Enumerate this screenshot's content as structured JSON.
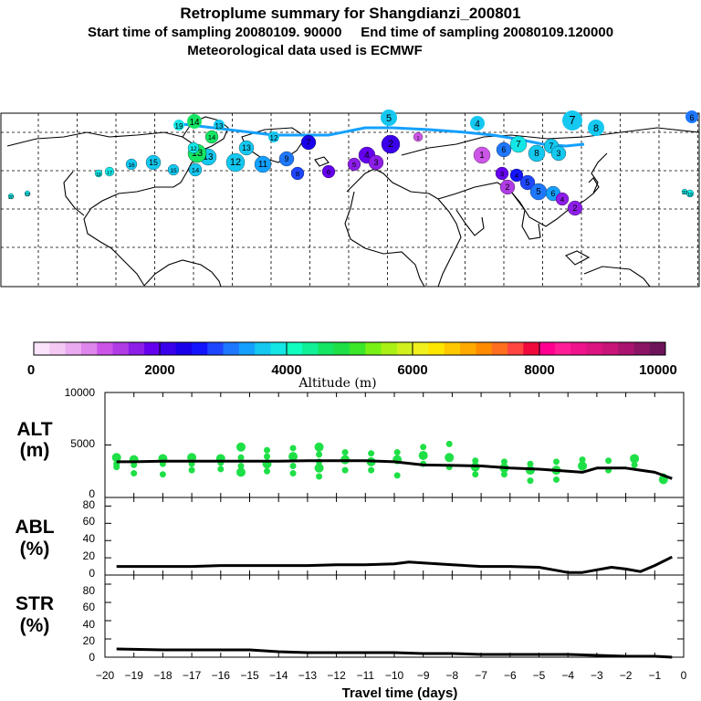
{
  "header": {
    "title": "Retroplume summary for Shangdianzi_200801",
    "line2": "Start time of sampling 20080109. 90000     End time of sampling 20080109.120000",
    "line3": "Meteorological data used is ECMWF"
  },
  "colorbar": {
    "ticks": [
      "0",
      "2000",
      "4000",
      "6000",
      "8000",
      "10000"
    ],
    "label": "Altitude (m)",
    "colors": [
      "#fbe3fb",
      "#f3c8f3",
      "#eaaaf0",
      "#df86ec",
      "#cc55e8",
      "#b03ce6",
      "#8c1ee8",
      "#6400ee",
      "#3a00ea",
      "#1a00e8",
      "#1414ff",
      "#1e46ff",
      "#1e78ff",
      "#14a0ff",
      "#14c8f0",
      "#14e6e6",
      "#10ffc0",
      "#10f096",
      "#14e664",
      "#1ee046",
      "#3ce628",
      "#78f014",
      "#aaf014",
      "#d2f01e",
      "#f0f01e",
      "#ffe600",
      "#ffc800",
      "#ffaa00",
      "#ff8c00",
      "#ff6e1e",
      "#ff4640",
      "#f00a3c",
      "#ff0090",
      "#ff1e96",
      "#f0148c",
      "#dc1482",
      "#c81478",
      "#aa1470",
      "#8c1464",
      "#6e145a"
    ]
  },
  "map_labels": {
    "upper_track": [
      "19",
      "14",
      "13",
      "12",
      "5",
      "4",
      "7",
      "8",
      "6"
    ],
    "clusters": [
      "20",
      "19",
      "18",
      "17",
      "16",
      "15",
      "14",
      "13",
      "12",
      "11",
      "10",
      "9",
      "8",
      "7",
      "6",
      "5",
      "4",
      "3",
      "2",
      "1"
    ]
  },
  "panels": {
    "alt": {
      "label_line1": "ALT",
      "label_line2": "(m)",
      "yticks": [
        "10000",
        "5000",
        "0"
      ]
    },
    "abl": {
      "label_line1": "ABL",
      "label_line2": "(%)",
      "yticks": [
        "80",
        "60",
        "40",
        "20",
        "0"
      ]
    },
    "str": {
      "label_line1": "STR",
      "label_line2": "(%)",
      "yticks": [
        "80",
        "60",
        "40",
        "20",
        "0"
      ]
    },
    "xticks": [
      "−20",
      "−19",
      "−18",
      "−17",
      "−16",
      "−15",
      "−14",
      "−13",
      "−12",
      "−11",
      "−10",
      "−9",
      "−8",
      "−7",
      "−6",
      "−5",
      "−4",
      "−3",
      "−2",
      "−1",
      "0"
    ],
    "xlabel": "Travel time (days)"
  },
  "chart_data": [
    {
      "type": "line",
      "title": "ALT",
      "ylabel": "(m)",
      "xlabel": "Travel time (days)",
      "xlim": [
        -20,
        0
      ],
      "ylim": [
        0,
        10000
      ],
      "series": [
        {
          "name": "mean altitude",
          "x": [
            -19.6,
            -19,
            -18,
            -17,
            -16,
            -15,
            -14,
            -13,
            -12,
            -11,
            -10,
            -9,
            -8,
            -7,
            -6,
            -5,
            -4,
            -3.5,
            -3,
            -2,
            -1.5,
            -1,
            -0.4
          ],
          "values": [
            3400,
            3400,
            3450,
            3450,
            3450,
            3450,
            3450,
            3500,
            3500,
            3500,
            3400,
            3100,
            3050,
            3000,
            2800,
            2700,
            2500,
            2400,
            2800,
            2800,
            2600,
            2400,
            1800
          ]
        },
        {
          "name": "cluster altitudes",
          "x": [
            -19.6,
            -19.6,
            -19.6,
            -19,
            -19,
            -19,
            -18,
            -18,
            -18,
            -17,
            -17,
            -17,
            -16,
            -16,
            -16,
            -15.3,
            -15.3,
            -15.3,
            -15.3,
            -14.4,
            -14.4,
            -14.4,
            -14.4,
            -13.5,
            -13.5,
            -13.5,
            -13.5,
            -12.6,
            -12.6,
            -12.6,
            -12.6,
            -12.6,
            -11.7,
            -11.7,
            -11.7,
            -10.8,
            -10.8,
            -10.8,
            -9.9,
            -9.9,
            -9.9,
            -9,
            -9,
            -9,
            -8.1,
            -8.1,
            -8.1,
            -7.2,
            -7.2,
            -7.2,
            -6.2,
            -6.2,
            -6.2,
            -5.3,
            -5.3,
            -5.3,
            -4.4,
            -4.4,
            -4.4,
            -3.5,
            -3.5,
            -2.6,
            -2.6,
            -1.7,
            -1.7,
            -0.7,
            -0.7
          ],
          "values": [
            3800,
            3200,
            2900,
            3600,
            3100,
            2300,
            3700,
            3200,
            2200,
            3800,
            3200,
            2600,
            3700,
            3300,
            2700,
            4800,
            3800,
            3000,
            2400,
            4500,
            3900,
            3200,
            2500,
            4700,
            3900,
            3000,
            2300,
            4800,
            4100,
            3400,
            2800,
            2000,
            4300,
            3600,
            2600,
            4200,
            3400,
            2600,
            4300,
            3600,
            2100,
            4800,
            4000,
            3200,
            5100,
            3800,
            2900,
            3500,
            2900,
            2200,
            3400,
            2800,
            2200,
            3200,
            2600,
            1600,
            3400,
            2600,
            1700,
            3600,
            3000,
            3500,
            2600,
            3700,
            3100,
            2000,
            1700
          ]
        }
      ]
    },
    {
      "type": "line",
      "title": "ABL",
      "ylabel": "(%)",
      "xlim": [
        -20,
        0
      ],
      "ylim": [
        0,
        90
      ],
      "series": [
        {
          "name": "ABL fraction",
          "x": [
            -19.6,
            -18,
            -17,
            -16,
            -15,
            -14,
            -13,
            -12,
            -11,
            -10,
            -9.5,
            -9,
            -8,
            -7,
            -6,
            -5,
            -4.5,
            -4,
            -3.5,
            -3,
            -2.5,
            -2,
            -1.5,
            -1,
            -0.4
          ],
          "values": [
            10,
            10,
            10,
            11,
            11,
            11,
            11,
            12,
            12,
            13,
            15,
            14,
            12,
            10,
            10,
            9,
            6,
            3,
            3,
            6,
            9,
            7,
            4,
            11,
            21
          ]
        }
      ]
    },
    {
      "type": "line",
      "title": "STR",
      "ylabel": "(%)",
      "xlim": [
        -20,
        0
      ],
      "ylim": [
        0,
        90
      ],
      "series": [
        {
          "name": "STR fraction",
          "x": [
            -19.6,
            -18,
            -17,
            -16,
            -15,
            -14,
            -13,
            -12,
            -11,
            -10,
            -9,
            -8,
            -7,
            -6,
            -5,
            -4,
            -3,
            -2,
            -1,
            -0.4
          ],
          "values": [
            9,
            8,
            8,
            8,
            8,
            6,
            5,
            5,
            5,
            5,
            4,
            4,
            3,
            3,
            3,
            3,
            2,
            1,
            1,
            0
          ]
        }
      ]
    }
  ]
}
